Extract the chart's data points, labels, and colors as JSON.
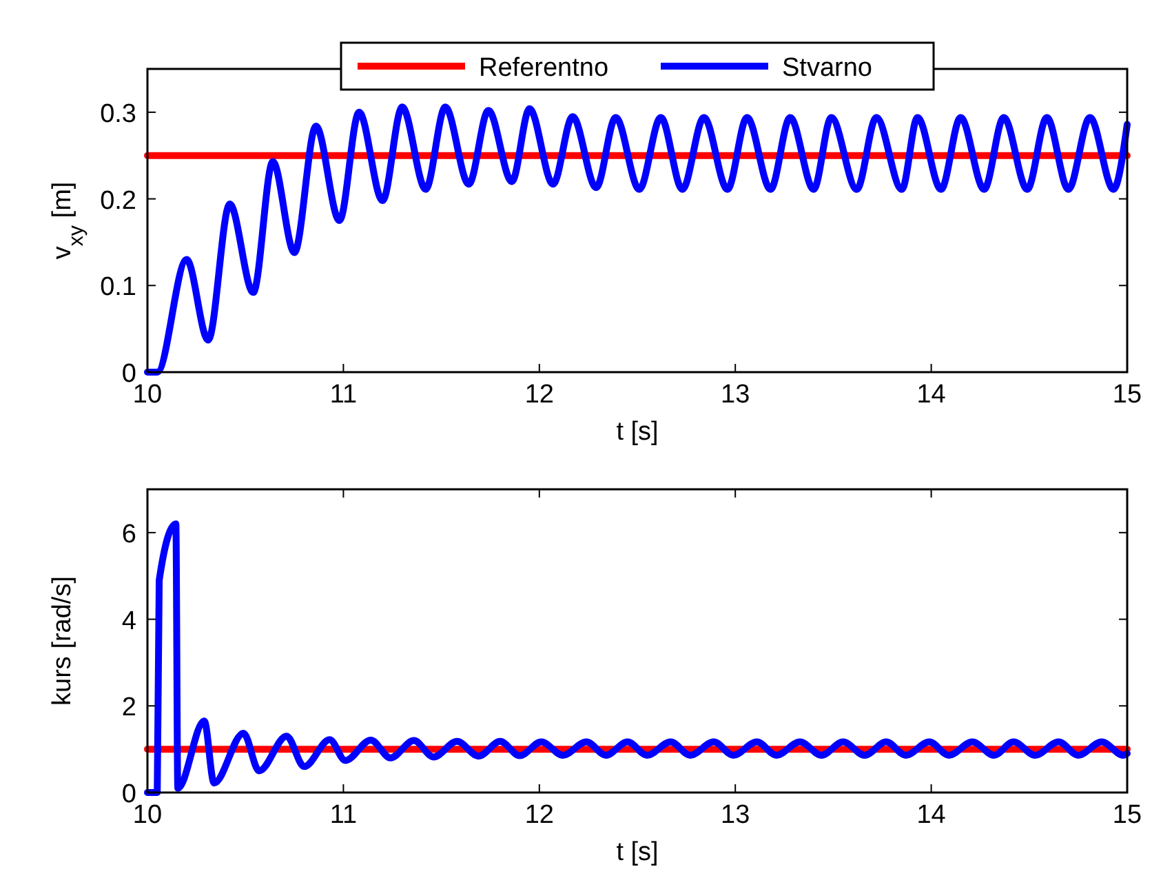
{
  "chart_data": [
    {
      "type": "line",
      "xlabel": "t [s]",
      "ylabel": "v$_{xy}$ [m]",
      "xlim": [
        10,
        15
      ],
      "xticks": [
        10,
        11,
        12,
        13,
        14,
        15
      ],
      "ylim": [
        0,
        0.35
      ],
      "yticks": [
        0,
        0.1,
        0.2,
        0.3
      ],
      "legend": "top",
      "series": [
        {
          "name": "Referentno",
          "color": "#ff0000",
          "x": [
            10,
            15
          ],
          "values": [
            0.25,
            0.25
          ]
        },
        {
          "name": "Stvarno",
          "color": "#0000ff",
          "x": [
            10,
            10.05,
            10.2,
            10.31,
            10.42,
            10.54,
            10.64,
            10.75,
            10.86,
            10.98,
            11.08,
            11.2,
            11.3,
            11.42,
            11.52,
            11.64,
            11.74,
            11.86,
            11.95,
            12.07,
            12.17,
            12.29,
            12.39,
            12.51,
            12.62,
            12.73,
            12.84,
            12.96,
            13.06,
            13.18,
            13.28,
            13.4,
            13.49,
            13.62,
            13.72,
            13.85,
            13.93,
            14.05,
            14.15,
            14.27,
            14.37,
            14.49,
            14.59,
            14.7,
            14.81,
            14.93,
            15
          ],
          "values": [
            0,
            0,
            0.13,
            0.037,
            0.194,
            0.092,
            0.243,
            0.138,
            0.284,
            0.175,
            0.3,
            0.198,
            0.306,
            0.211,
            0.306,
            0.217,
            0.302,
            0.22,
            0.304,
            0.217,
            0.295,
            0.213,
            0.294,
            0.211,
            0.294,
            0.211,
            0.294,
            0.211,
            0.294,
            0.211,
            0.294,
            0.211,
            0.294,
            0.211,
            0.294,
            0.211,
            0.294,
            0.211,
            0.294,
            0.211,
            0.294,
            0.211,
            0.294,
            0.211,
            0.294,
            0.211,
            0.286
          ]
        }
      ]
    },
    {
      "type": "line",
      "xlabel": "t [s]",
      "ylabel": "kurs [rad/s]",
      "xlim": [
        10,
        15
      ],
      "xticks": [
        10,
        11,
        12,
        13,
        14,
        15
      ],
      "ylim": [
        0,
        7
      ],
      "yticks": [
        0,
        2,
        4,
        6
      ],
      "series": [
        {
          "color": "#ff0000",
          "x": [
            10,
            15
          ],
          "values": [
            1,
            1
          ]
        },
        {
          "color": "#0000ff",
          "x": [
            10,
            10.05,
            10.06,
            10.145,
            10.155,
            10.29,
            10.34,
            10.49,
            10.57,
            10.71,
            10.8,
            10.93,
            11.01,
            11.14,
            11.24,
            11.36,
            11.46,
            11.58,
            11.69,
            11.8,
            11.9,
            12.01,
            12.12,
            12.24,
            12.34,
            12.45,
            12.55,
            12.67,
            12.77,
            12.89,
            12.99,
            13.11,
            13.21,
            13.33,
            13.44,
            13.55,
            13.66,
            13.77,
            13.87,
            13.99,
            14.09,
            14.21,
            14.32,
            14.42,
            14.53,
            14.65,
            14.75,
            14.87,
            14.98,
            15
          ],
          "values": [
            0,
            0,
            4.9,
            6.2,
            0.1,
            1.65,
            0.22,
            1.37,
            0.5,
            1.3,
            0.6,
            1.22,
            0.74,
            1.21,
            0.8,
            1.2,
            0.82,
            1.18,
            0.84,
            1.18,
            0.85,
            1.17,
            0.86,
            1.17,
            0.86,
            1.17,
            0.86,
            1.17,
            0.86,
            1.17,
            0.86,
            1.17,
            0.86,
            1.17,
            0.86,
            1.17,
            0.86,
            1.17,
            0.86,
            1.17,
            0.86,
            1.17,
            0.86,
            1.17,
            0.86,
            1.17,
            0.86,
            1.17,
            0.86,
            0.9
          ]
        }
      ]
    }
  ]
}
